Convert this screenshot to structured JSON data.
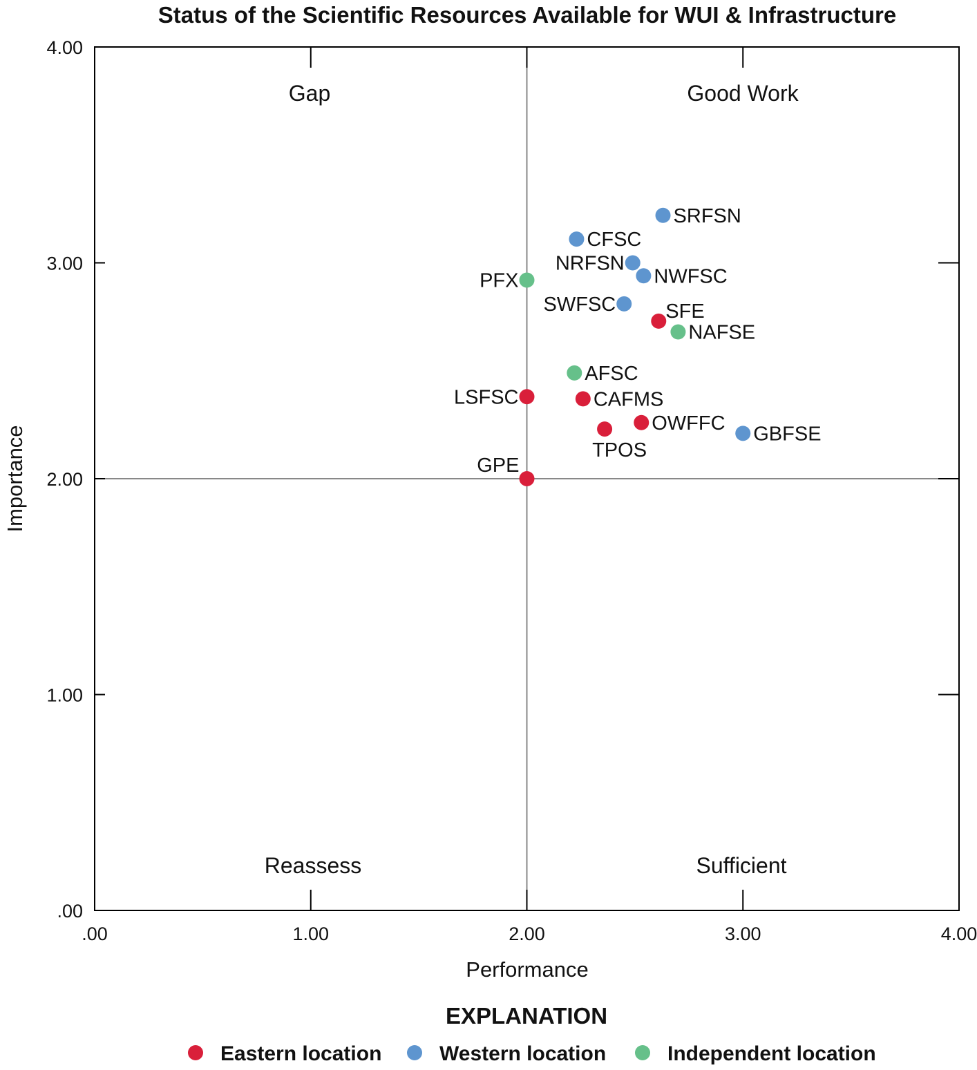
{
  "chart_data": {
    "type": "scatter",
    "title": "Status of the Scientific Resources Available for WUI & Infrastructure",
    "xlabel": "Performance",
    "ylabel": "Importance",
    "xlim": [
      0,
      4
    ],
    "ylim": [
      0,
      4
    ],
    "x_ticks": [
      ".00",
      "1.00",
      "2.00",
      "3.00",
      "4.00"
    ],
    "y_ticks": [
      ".00",
      "1.00",
      "2.00",
      "3.00",
      "4.00"
    ],
    "quadrant_dividers": {
      "x": 2,
      "y": 2
    },
    "quadrant_labels": {
      "top_left": "Gap",
      "top_right": "Good Work",
      "bottom_left": "Reassess",
      "bottom_right": "Sufficient"
    },
    "legend_title": "EXPLANATION",
    "legend_placement": "bottom",
    "series": [
      {
        "name": "Eastern location",
        "color": "#d91f3a"
      },
      {
        "name": "Western location",
        "color": "#5e95cf"
      },
      {
        "name": "Independent location",
        "color": "#66c08a"
      }
    ],
    "points": [
      {
        "label": "SRFSN",
        "series": 1,
        "x": 2.63,
        "y": 3.22,
        "label_pos": "right"
      },
      {
        "label": "CFSC",
        "series": 1,
        "x": 2.23,
        "y": 3.11,
        "label_pos": "right"
      },
      {
        "label": "NRFSN",
        "series": 1,
        "x": 2.49,
        "y": 3.0,
        "label_pos": "left"
      },
      {
        "label": "NWFSC",
        "series": 1,
        "x": 2.54,
        "y": 2.94,
        "label_pos": "right"
      },
      {
        "label": "PFX",
        "series": 2,
        "x": 2.0,
        "y": 2.92,
        "label_pos": "left"
      },
      {
        "label": "SWFSC",
        "series": 1,
        "x": 2.45,
        "y": 2.81,
        "label_pos": "left"
      },
      {
        "label": "SFE",
        "series": 0,
        "x": 2.61,
        "y": 2.73,
        "label_pos": "above-right"
      },
      {
        "label": "NAFSE",
        "series": 2,
        "x": 2.7,
        "y": 2.68,
        "label_pos": "right"
      },
      {
        "label": "AFSC",
        "series": 2,
        "x": 2.22,
        "y": 2.49,
        "label_pos": "right"
      },
      {
        "label": "LSFSC",
        "series": 0,
        "x": 2.0,
        "y": 2.38,
        "label_pos": "left"
      },
      {
        "label": "CAFMS",
        "series": 0,
        "x": 2.26,
        "y": 2.37,
        "label_pos": "right"
      },
      {
        "label": "OWFFC",
        "series": 0,
        "x": 2.53,
        "y": 2.26,
        "label_pos": "right"
      },
      {
        "label": "TPOS",
        "series": 0,
        "x": 2.36,
        "y": 2.23,
        "label_pos": "below"
      },
      {
        "label": "GBFSE",
        "series": 1,
        "x": 3.0,
        "y": 2.21,
        "label_pos": "right"
      },
      {
        "label": "GPE",
        "series": 0,
        "x": 2.0,
        "y": 2.0,
        "label_pos": "above-left"
      }
    ]
  }
}
